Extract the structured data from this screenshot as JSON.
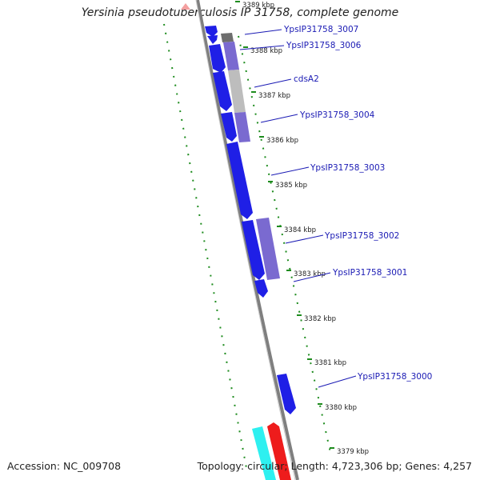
{
  "title": "Yersinia pseudotuberculosis IP 31758, complete genome",
  "footer": {
    "accession": "Accession: NC_009708",
    "summary": "Topology: circular; Length: 4,723,306 bp; Genes: 4,257"
  },
  "colors": {
    "cds_forward": "#1f1fe6",
    "cds_blast": "#7a6ad0",
    "backbone": "#7f7f7f",
    "tick": "#1e8c1e",
    "gray_feature": "#bdbdbd",
    "cyan_feature": "#2ef0f0",
    "red_feature": "#ee1c1c"
  },
  "ticks": [
    {
      "label": "3389 kbp"
    },
    {
      "label": "3388 kbp"
    },
    {
      "label": "3387 kbp"
    },
    {
      "label": "3386 kbp"
    },
    {
      "label": "3385 kbp"
    },
    {
      "label": "3384 kbp"
    },
    {
      "label": "3383 kbp"
    },
    {
      "label": "3382 kbp"
    },
    {
      "label": "3381 kbp"
    },
    {
      "label": "3380 kbp"
    },
    {
      "label": "3379 kbp"
    }
  ],
  "genes": [
    {
      "label": "YpsIP31758_3007"
    },
    {
      "label": "YpsIP31758_3006"
    },
    {
      "label": "cdsA2"
    },
    {
      "label": "YpsIP31758_3004"
    },
    {
      "label": "YpsIP31758_3003"
    },
    {
      "label": "YpsIP31758_3002"
    },
    {
      "label": "YpsIP31758_3001"
    },
    {
      "label": "YpsIP31758_3000"
    }
  ]
}
